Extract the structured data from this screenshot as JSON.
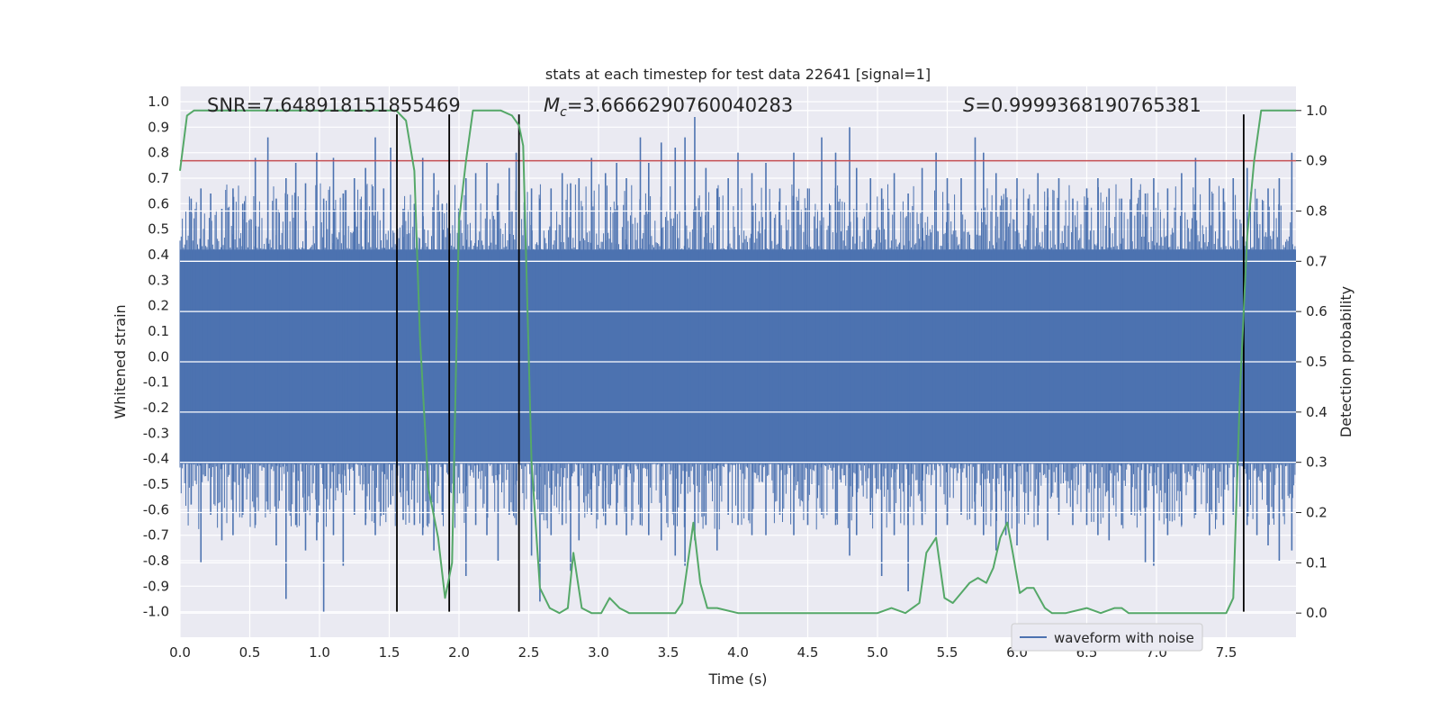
{
  "chart_data": {
    "type": "line",
    "title": "stats at each timestep for test data 22641 [signal=1]",
    "xlabel": "Time (s)",
    "ylabel": "Whitened strain",
    "ylabel_right": "Detection probability",
    "xlim": [
      0,
      8
    ],
    "ylim": [
      -1.1,
      1.06
    ],
    "ylim_right": [
      -0.048,
      1.048
    ],
    "xticks": [
      "0.0",
      "0.5",
      "1.0",
      "1.5",
      "2.0",
      "2.5",
      "3.0",
      "3.5",
      "4.0",
      "4.5",
      "5.0",
      "5.5",
      "6.0",
      "6.5",
      "7.0",
      "7.5"
    ],
    "yticks": [
      "1.0",
      "0.9",
      "0.8",
      "0.7",
      "0.6",
      "0.5",
      "0.4",
      "0.3",
      "0.2",
      "0.1",
      "0.0",
      "-0.1",
      "-0.2",
      "-0.3",
      "-0.4",
      "-0.5",
      "-0.6",
      "-0.7",
      "-0.8",
      "-0.9",
      "-1.0"
    ],
    "yticks_right": [
      "1.0",
      "0.9",
      "0.8",
      "0.7",
      "0.6",
      "0.5",
      "0.4",
      "0.3",
      "0.2",
      "0.1",
      "0.0"
    ],
    "annotations": {
      "snr": "SNR=7.648918151855469",
      "mc_symbol": "M",
      "mc_sub": "c",
      "mc_value": "=3.6666290760040283",
      "s_symbol": "S",
      "s_value": "=0.9999368190765381"
    },
    "threshold": {
      "value": 0.9,
      "color": "#c44e52"
    },
    "event_lines": [
      1.555,
      1.93,
      2.43,
      7.625
    ],
    "event_line_range": [
      -1.0,
      0.95
    ],
    "waveform": {
      "name": "waveform with noise",
      "color": "#4c72b0",
      "dense_band": [
        -0.42,
        0.42
      ],
      "spikes": [
        [
          0.08,
          0.62,
          -0.58
        ],
        [
          0.15,
          0.66,
          -0.81
        ],
        [
          0.22,
          0.64,
          -0.62
        ],
        [
          0.3,
          0.58,
          -0.72
        ],
        [
          0.38,
          0.66,
          -0.7
        ],
        [
          0.45,
          0.6,
          -0.62
        ],
        [
          0.54,
          0.78,
          -0.66
        ],
        [
          0.63,
          0.86,
          -0.6
        ],
        [
          0.69,
          0.62,
          -0.74
        ],
        [
          0.76,
          0.7,
          -0.95
        ],
        [
          0.83,
          0.76,
          -0.66
        ],
        [
          0.9,
          0.68,
          -0.76
        ],
        [
          0.98,
          0.8,
          -0.72
        ],
        [
          1.03,
          0.62,
          -1.0
        ],
        [
          1.1,
          0.78,
          -0.7
        ],
        [
          1.17,
          0.64,
          -0.82
        ],
        [
          1.25,
          0.7,
          -0.62
        ],
        [
          1.33,
          0.74,
          -0.66
        ],
        [
          1.4,
          0.86,
          -0.7
        ],
        [
          1.46,
          0.66,
          -0.62
        ],
        [
          1.51,
          0.82,
          -0.58
        ],
        [
          1.6,
          0.58,
          -0.64
        ],
        [
          1.68,
          0.6,
          -0.66
        ],
        [
          1.74,
          0.78,
          -0.7
        ],
        [
          1.82,
          0.72,
          -0.76
        ],
        [
          1.88,
          0.6,
          -0.62
        ],
        [
          2.05,
          0.7,
          -0.86
        ],
        [
          2.12,
          0.72,
          -0.66
        ],
        [
          2.2,
          0.76,
          -0.7
        ],
        [
          2.28,
          0.68,
          -0.8
        ],
        [
          2.36,
          0.74,
          -0.62
        ],
        [
          2.41,
          0.8,
          -0.66
        ],
        [
          2.52,
          0.66,
          -0.78
        ],
        [
          2.58,
          0.62,
          -0.96
        ],
        [
          2.66,
          0.66,
          -0.7
        ],
        [
          2.74,
          0.72,
          -0.66
        ],
        [
          2.8,
          0.68,
          -0.84
        ],
        [
          2.86,
          0.7,
          -0.72
        ],
        [
          2.95,
          0.78,
          -0.62
        ],
        [
          3.05,
          0.72,
          -0.66
        ],
        [
          3.13,
          0.76,
          -0.66
        ],
        [
          3.2,
          0.7,
          -0.7
        ],
        [
          3.3,
          0.86,
          -0.66
        ],
        [
          3.36,
          0.76,
          -0.7
        ],
        [
          3.45,
          0.84,
          -0.72
        ],
        [
          3.55,
          0.82,
          -0.78
        ],
        [
          3.62,
          0.86,
          -0.82
        ],
        [
          3.69,
          0.94,
          -0.72
        ],
        [
          3.77,
          0.74,
          -0.66
        ],
        [
          3.85,
          0.66,
          -0.76
        ],
        [
          3.93,
          0.7,
          -0.62
        ],
        [
          4.0,
          0.8,
          -0.66
        ],
        [
          4.1,
          0.72,
          -0.7
        ],
        [
          4.2,
          0.76,
          -0.7
        ],
        [
          4.3,
          0.66,
          -0.62
        ],
        [
          4.4,
          0.8,
          -0.7
        ],
        [
          4.5,
          0.66,
          -0.66
        ],
        [
          4.6,
          0.86,
          -0.62
        ],
        [
          4.7,
          0.8,
          -0.66
        ],
        [
          4.8,
          0.9,
          -0.78
        ],
        [
          4.85,
          0.74,
          -0.7
        ],
        [
          4.95,
          0.7,
          -0.62
        ],
        [
          5.03,
          0.66,
          -0.86
        ],
        [
          5.12,
          0.72,
          -0.7
        ],
        [
          5.22,
          0.64,
          -0.92
        ],
        [
          5.32,
          0.74,
          -0.66
        ],
        [
          5.42,
          0.8,
          -0.7
        ],
        [
          5.5,
          0.7,
          -0.66
        ],
        [
          5.6,
          0.7,
          -0.62
        ],
        [
          5.7,
          0.86,
          -0.66
        ],
        [
          5.76,
          0.8,
          -0.7
        ],
        [
          5.85,
          0.72,
          -0.76
        ],
        [
          5.92,
          0.66,
          -0.7
        ],
        [
          6.0,
          0.7,
          -0.74
        ],
        [
          6.08,
          0.62,
          -0.62
        ],
        [
          6.15,
          0.72,
          -0.66
        ],
        [
          6.22,
          0.66,
          -0.72
        ],
        [
          6.3,
          0.7,
          -0.62
        ],
        [
          6.4,
          0.62,
          -0.66
        ],
        [
          6.5,
          0.66,
          -0.66
        ],
        [
          6.58,
          0.7,
          -0.7
        ],
        [
          6.66,
          0.66,
          -0.72
        ],
        [
          6.75,
          0.62,
          -0.66
        ],
        [
          6.82,
          0.7,
          -0.62
        ],
        [
          6.92,
          0.64,
          -0.81
        ],
        [
          6.98,
          0.7,
          -0.82
        ],
        [
          7.08,
          0.66,
          -0.7
        ],
        [
          7.18,
          0.72,
          -0.66
        ],
        [
          7.28,
          0.78,
          -0.62
        ],
        [
          7.38,
          0.7,
          -0.7
        ],
        [
          7.48,
          0.66,
          -0.66
        ],
        [
          7.55,
          0.7,
          -0.62
        ],
        [
          7.65,
          0.74,
          -0.66
        ],
        [
          7.72,
          0.62,
          -0.7
        ],
        [
          7.8,
          0.66,
          -0.74
        ],
        [
          7.88,
          0.7,
          -0.8
        ],
        [
          7.97,
          0.8,
          -0.76
        ]
      ]
    },
    "probability": {
      "color": "#55a868",
      "x": [
        0.0,
        0.05,
        0.1,
        0.3,
        0.6,
        0.9,
        1.2,
        1.4,
        1.55,
        1.62,
        1.68,
        1.72,
        1.78,
        1.85,
        1.9,
        1.95,
        2.0,
        2.05,
        2.1,
        2.2,
        2.3,
        2.38,
        2.43,
        2.46,
        2.52,
        2.58,
        2.65,
        2.72,
        2.78,
        2.82,
        2.88,
        2.95,
        3.02,
        3.08,
        3.15,
        3.22,
        3.3,
        3.45,
        3.55,
        3.6,
        3.65,
        3.68,
        3.73,
        3.78,
        3.85,
        4.0,
        4.5,
        5.0,
        5.1,
        5.2,
        5.3,
        5.35,
        5.42,
        5.48,
        5.54,
        5.6,
        5.66,
        5.72,
        5.78,
        5.83,
        5.88,
        5.93,
        5.97,
        6.02,
        6.07,
        6.12,
        6.2,
        6.25,
        6.35,
        6.5,
        6.6,
        6.7,
        6.75,
        6.8,
        6.9,
        7.0,
        7.2,
        7.4,
        7.5,
        7.55,
        7.6,
        7.65,
        7.7,
        7.75,
        7.85,
        8.0
      ],
      "y": [
        0.88,
        0.99,
        1.0,
        1.0,
        1.0,
        1.0,
        1.0,
        1.0,
        1.0,
        0.98,
        0.88,
        0.55,
        0.25,
        0.15,
        0.03,
        0.1,
        0.78,
        0.9,
        1.0,
        1.0,
        1.0,
        0.99,
        0.97,
        0.93,
        0.3,
        0.05,
        0.01,
        0.0,
        0.01,
        0.12,
        0.01,
        0.0,
        0.0,
        0.03,
        0.01,
        0.0,
        0.0,
        0.0,
        0.0,
        0.02,
        0.12,
        0.18,
        0.06,
        0.01,
        0.01,
        0.0,
        0.0,
        0.0,
        0.01,
        0.0,
        0.02,
        0.12,
        0.15,
        0.03,
        0.02,
        0.04,
        0.06,
        0.07,
        0.06,
        0.09,
        0.15,
        0.18,
        0.12,
        0.04,
        0.05,
        0.05,
        0.01,
        0.0,
        0.0,
        0.01,
        0.0,
        0.01,
        0.01,
        0.0,
        0.0,
        0.0,
        0.0,
        0.0,
        0.0,
        0.03,
        0.45,
        0.75,
        0.9,
        1.0,
        1.0,
        1.0
      ]
    },
    "legend": {
      "label": "waveform with noise",
      "placement": "lower-right"
    }
  }
}
